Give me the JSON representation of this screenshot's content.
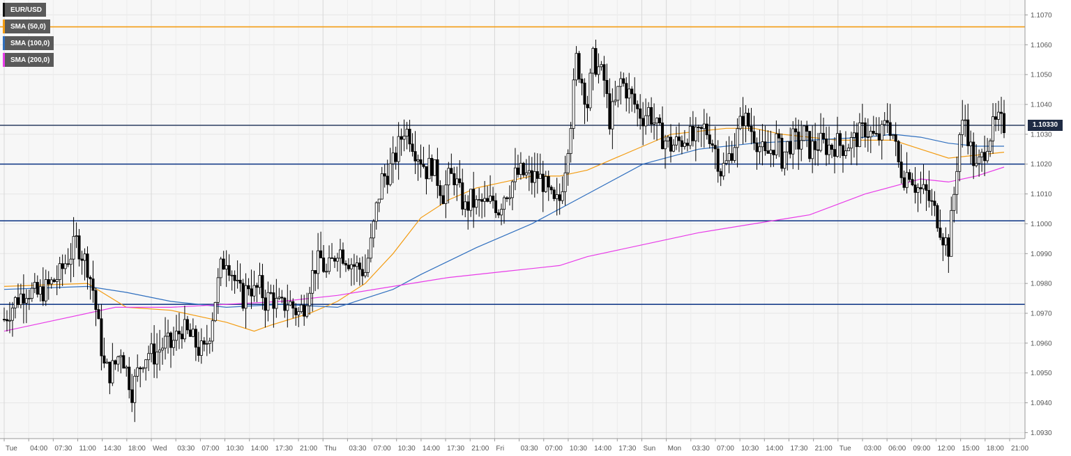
{
  "chart_data": {
    "type": "candlestick",
    "symbol": "EUR/USD",
    "current_price": 1.1033,
    "current_price_label": "1.10330",
    "ylim": [
      1.0928,
      1.1075
    ],
    "yticks": [
      "1.0930",
      "1.0940",
      "1.0950",
      "1.0960",
      "1.0970",
      "1.0980",
      "1.0990",
      "1.1000",
      "1.1010",
      "1.1020",
      "1.1030",
      "1.1040",
      "1.1050",
      "1.1060",
      "1.1070"
    ],
    "xticks": [
      "Tue",
      "04:00",
      "07:30",
      "11:00",
      "14:30",
      "18:00",
      "Wed",
      "03:30",
      "07:00",
      "10:30",
      "14:00",
      "17:30",
      "21:00",
      "Thu",
      "03:30",
      "07:00",
      "10:30",
      "14:00",
      "17:30",
      "21:00",
      "Fri",
      "03:30",
      "07:00",
      "10:30",
      "14:00",
      "17:30",
      "Sun",
      "Mon",
      "03:30",
      "07:00",
      "10:30",
      "14:00",
      "17:30",
      "21:00",
      "Tue",
      "03:00",
      "06:00",
      "09:00",
      "12:00",
      "15:00",
      "18:00",
      "21:00"
    ],
    "separators": [
      "Wed",
      "Thu",
      "Fri",
      "Sun",
      "Mon",
      "Tue"
    ],
    "grid": true,
    "legend_position": "top-left",
    "horizontal_levels": [
      {
        "value": 1.1066,
        "color": "#f39c12"
      },
      {
        "value": 1.1033,
        "color": "#2c3e60"
      },
      {
        "value": 1.102,
        "color": "#1a3f8a"
      },
      {
        "value": 1.1001,
        "color": "#1a3f8a"
      },
      {
        "value": 1.0973,
        "color": "#1a3f8a"
      }
    ],
    "series": [
      {
        "name": "EUR/USD",
        "color": "#000000"
      },
      {
        "name": "SMA (50,0)",
        "color": "#f39c12"
      },
      {
        "name": "SMA (100,0)",
        "color": "#2f6fbf"
      },
      {
        "name": "SMA (200,0)",
        "color": "#e83be8"
      }
    ],
    "close_path": [
      [
        0,
        1.0968
      ],
      [
        4,
        1.0974
      ],
      [
        8,
        1.0978
      ],
      [
        12,
        1.0976
      ],
      [
        16,
        1.0979
      ],
      [
        20,
        1.0983
      ],
      [
        22,
        1.0987
      ],
      [
        24,
        1.099
      ],
      [
        26,
        1.0994
      ],
      [
        28,
        1.099
      ],
      [
        30,
        1.0986
      ],
      [
        32,
        1.0978
      ],
      [
        34,
        1.0965
      ],
      [
        36,
        1.0952
      ],
      [
        38,
        1.095
      ],
      [
        40,
        1.0953
      ],
      [
        42,
        1.0958
      ],
      [
        44,
        1.0951
      ],
      [
        46,
        1.0944
      ],
      [
        48,
        1.095
      ],
      [
        50,
        1.0955
      ],
      [
        52,
        1.0957
      ],
      [
        54,
        1.0956
      ],
      [
        56,
        1.0958
      ],
      [
        58,
        1.096
      ],
      [
        60,
        1.0959
      ],
      [
        62,
        1.0962
      ],
      [
        64,
        1.0965
      ],
      [
        66,
        1.0963
      ],
      [
        68,
        1.0961
      ],
      [
        70,
        1.0958
      ],
      [
        72,
        1.0957
      ],
      [
        74,
        1.0964
      ],
      [
        76,
        1.0975
      ],
      [
        78,
        1.0985
      ],
      [
        80,
        1.0989
      ],
      [
        82,
        1.0984
      ],
      [
        84,
        1.0978
      ],
      [
        86,
        1.0975
      ],
      [
        88,
        1.098
      ],
      [
        90,
        1.0977
      ],
      [
        92,
        1.0979
      ],
      [
        94,
        1.0974
      ],
      [
        96,
        1.0976
      ],
      [
        98,
        1.0973
      ],
      [
        100,
        1.0972
      ],
      [
        102,
        1.0974
      ],
      [
        104,
        1.0972
      ],
      [
        106,
        1.097
      ],
      [
        108,
        1.0973
      ],
      [
        110,
        1.098
      ],
      [
        112,
        1.0986
      ],
      [
        114,
        1.0988
      ],
      [
        116,
        1.0983
      ],
      [
        118,
        1.0987
      ],
      [
        120,
        1.0992
      ],
      [
        122,
        1.099
      ],
      [
        124,
        1.0988
      ],
      [
        126,
        1.0986
      ],
      [
        128,
        1.0985
      ],
      [
        130,
        1.0984
      ],
      [
        132,
        1.0993
      ],
      [
        134,
        1.1005
      ],
      [
        136,
        1.1015
      ],
      [
        138,
        1.1017
      ],
      [
        140,
        1.102
      ],
      [
        142,
        1.1026
      ],
      [
        144,
        1.1032
      ],
      [
        146,
        1.103
      ],
      [
        148,
        1.1025
      ],
      [
        150,
        1.1022
      ],
      [
        152,
        1.1018
      ],
      [
        154,
        1.102
      ],
      [
        156,
        1.1015
      ],
      [
        158,
        1.101
      ],
      [
        160,
        1.1015
      ],
      [
        162,
        1.1016
      ],
      [
        164,
        1.101
      ],
      [
        166,
        1.1005
      ],
      [
        168,
        1.1008
      ],
      [
        170,
        1.1006
      ],
      [
        172,
        1.1007
      ],
      [
        174,
        1.1006
      ],
      [
        176,
        1.1008
      ],
      [
        178,
        1.1005
      ],
      [
        180,
        1.101
      ],
      [
        182,
        1.1012
      ],
      [
        184,
        1.1016
      ],
      [
        186,
        1.1017
      ],
      [
        188,
        1.1016
      ],
      [
        190,
        1.1015
      ],
      [
        192,
        1.1016
      ],
      [
        194,
        1.1014
      ],
      [
        196,
        1.101
      ],
      [
        198,
        1.1006
      ],
      [
        200,
        1.1008
      ],
      [
        202,
        1.102
      ],
      [
        204,
        1.1035
      ],
      [
        206,
        1.1055
      ],
      [
        208,
        1.1048
      ],
      [
        210,
        1.104
      ],
      [
        212,
        1.1055
      ],
      [
        214,
        1.1052
      ],
      [
        216,
        1.1048
      ],
      [
        218,
        1.1035
      ],
      [
        220,
        1.104
      ],
      [
        222,
        1.1048
      ],
      [
        224,
        1.1045
      ],
      [
        226,
        1.1042
      ],
      [
        228,
        1.1038
      ],
      [
        230,
        1.1036
      ],
      [
        232,
        1.1038
      ],
      [
        234,
        1.1034
      ],
      [
        236,
        1.103
      ],
      [
        238,
        1.1028
      ],
      [
        240,
        1.1026
      ],
      [
        242,
        1.1027
      ],
      [
        244,
        1.1028
      ],
      [
        246,
        1.103
      ],
      [
        248,
        1.1028
      ],
      [
        250,
        1.1029
      ],
      [
        252,
        1.1032
      ],
      [
        254,
        1.103
      ],
      [
        256,
        1.1025
      ],
      [
        258,
        1.1018
      ],
      [
        260,
        1.102
      ],
      [
        262,
        1.1025
      ],
      [
        264,
        1.103
      ],
      [
        266,
        1.1036
      ],
      [
        268,
        1.1033
      ],
      [
        270,
        1.103
      ],
      [
        272,
        1.1026
      ],
      [
        274,
        1.1022
      ],
      [
        276,
        1.1025
      ],
      [
        278,
        1.1028
      ],
      [
        280,
        1.1022
      ],
      [
        282,
        1.1026
      ],
      [
        284,
        1.1028
      ],
      [
        286,
        1.1027
      ],
      [
        288,
        1.103
      ],
      [
        290,
        1.1025
      ],
      [
        292,
        1.1026
      ],
      [
        294,
        1.1027
      ],
      [
        296,
        1.1026
      ],
      [
        298,
        1.1026
      ],
      [
        300,
        1.1027
      ],
      [
        302,
        1.1026
      ],
      [
        304,
        1.1027
      ],
      [
        306,
        1.1028
      ],
      [
        308,
        1.103
      ],
      [
        310,
        1.1032
      ],
      [
        312,
        1.103
      ],
      [
        314,
        1.1028
      ],
      [
        316,
        1.103
      ],
      [
        318,
        1.1035
      ],
      [
        320,
        1.103
      ],
      [
        322,
        1.102
      ],
      [
        324,
        1.1016
      ],
      [
        326,
        1.1018
      ],
      [
        328,
        1.1013
      ],
      [
        330,
        1.1011
      ],
      [
        332,
        1.101
      ],
      [
        334,
        1.1006
      ],
      [
        336,
        1.1002
      ],
      [
        338,
        1.0996
      ],
      [
        340,
        1.0992
      ],
      [
        342,
        1.101
      ],
      [
        344,
        1.103
      ],
      [
        346,
        1.1035
      ],
      [
        348,
        1.1025
      ],
      [
        350,
        1.1018
      ],
      [
        352,
        1.1022
      ],
      [
        354,
        1.1028
      ],
      [
        356,
        1.1032
      ],
      [
        358,
        1.1034
      ],
      [
        360,
        1.1033
      ]
    ],
    "sma50": [
      [
        0,
        1.0979
      ],
      [
        30,
        1.098
      ],
      [
        44,
        1.0972
      ],
      [
        60,
        1.0971
      ],
      [
        80,
        1.0967
      ],
      [
        90,
        1.0964
      ],
      [
        96,
        1.0966
      ],
      [
        110,
        1.097
      ],
      [
        120,
        1.0974
      ],
      [
        130,
        1.098
      ],
      [
        140,
        1.099
      ],
      [
        150,
        1.1002
      ],
      [
        160,
        1.1008
      ],
      [
        170,
        1.1012
      ],
      [
        180,
        1.1014
      ],
      [
        190,
        1.1016
      ],
      [
        200,
        1.1016
      ],
      [
        210,
        1.1018
      ],
      [
        220,
        1.1022
      ],
      [
        230,
        1.1026
      ],
      [
        240,
        1.103
      ],
      [
        250,
        1.1031
      ],
      [
        260,
        1.1032
      ],
      [
        270,
        1.1032
      ],
      [
        280,
        1.103
      ],
      [
        290,
        1.1029
      ],
      [
        300,
        1.1028
      ],
      [
        310,
        1.1028
      ],
      [
        320,
        1.1028
      ],
      [
        330,
        1.1025
      ],
      [
        340,
        1.1022
      ],
      [
        350,
        1.1023
      ],
      [
        360,
        1.1024
      ]
    ],
    "sma100": [
      [
        0,
        1.0978
      ],
      [
        30,
        1.0979
      ],
      [
        44,
        1.0977
      ],
      [
        60,
        1.0974
      ],
      [
        80,
        1.0972
      ],
      [
        100,
        1.0973
      ],
      [
        120,
        1.0972
      ],
      [
        140,
        1.0978
      ],
      [
        150,
        1.0983
      ],
      [
        170,
        1.0992
      ],
      [
        190,
        1.1
      ],
      [
        210,
        1.101
      ],
      [
        230,
        1.102
      ],
      [
        250,
        1.1025
      ],
      [
        270,
        1.1027
      ],
      [
        290,
        1.1028
      ],
      [
        310,
        1.1029
      ],
      [
        320,
        1.103
      ],
      [
        330,
        1.1029
      ],
      [
        340,
        1.1027
      ],
      [
        350,
        1.1026
      ],
      [
        360,
        1.1026
      ]
    ],
    "sma200": [
      [
        0,
        1.0964
      ],
      [
        20,
        1.0968
      ],
      [
        40,
        1.0972
      ],
      [
        60,
        1.0972
      ],
      [
        80,
        1.0973
      ],
      [
        100,
        1.0974
      ],
      [
        120,
        1.0976
      ],
      [
        140,
        1.0979
      ],
      [
        160,
        1.0982
      ],
      [
        180,
        1.0984
      ],
      [
        200,
        1.0986
      ],
      [
        210,
        1.0989
      ],
      [
        230,
        1.0993
      ],
      [
        250,
        1.0997
      ],
      [
        270,
        1.1
      ],
      [
        290,
        1.1003
      ],
      [
        310,
        1.101
      ],
      [
        330,
        1.1015
      ],
      [
        340,
        1.1014
      ],
      [
        350,
        1.1016
      ],
      [
        360,
        1.1019
      ]
    ]
  },
  "legend": [
    {
      "label": "EUR/USD",
      "color": "#111111"
    },
    {
      "label": "SMA (50,0)",
      "color": "#f39c12"
    },
    {
      "label": "SMA (100,0)",
      "color": "#2f6fbf"
    },
    {
      "label": "SMA (200,0)",
      "color": "#e83be8"
    }
  ]
}
